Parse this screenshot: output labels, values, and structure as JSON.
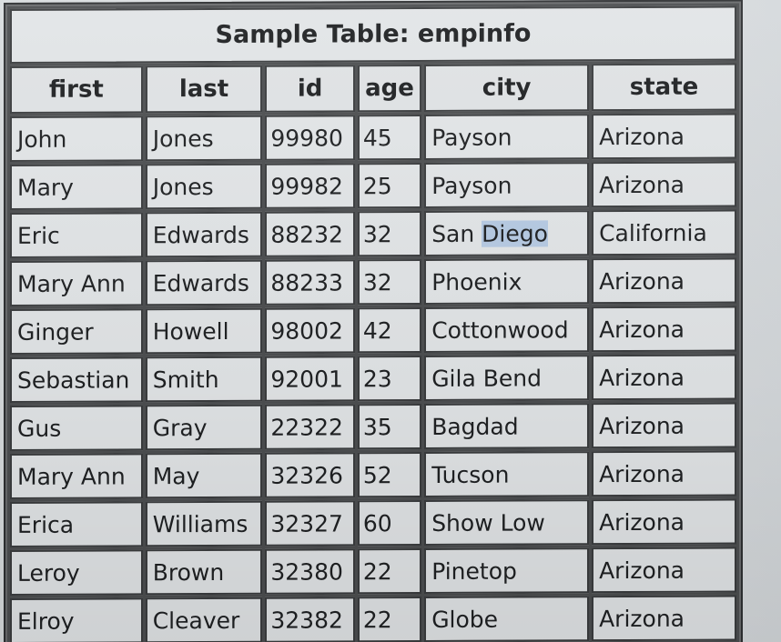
{
  "table": {
    "title": "Sample Table: empinfo",
    "columns": [
      "first",
      "last",
      "id",
      "age",
      "city",
      "state"
    ],
    "rows": [
      [
        "John",
        "Jones",
        "99980",
        "45",
        "Payson",
        "Arizona"
      ],
      [
        "Mary",
        "Jones",
        "99982",
        "25",
        "Payson",
        "Arizona"
      ],
      [
        "Eric",
        "Edwards",
        "88232",
        "32",
        "San Diego",
        "California"
      ],
      [
        "Mary Ann",
        "Edwards",
        "88233",
        "32",
        "Phoenix",
        "Arizona"
      ],
      [
        "Ginger",
        "Howell",
        "98002",
        "42",
        "Cottonwood",
        "Arizona"
      ],
      [
        "Sebastian",
        "Smith",
        "92001",
        "23",
        "Gila Bend",
        "Arizona"
      ],
      [
        "Gus",
        "Gray",
        "22322",
        "35",
        "Bagdad",
        "Arizona"
      ],
      [
        "Mary Ann",
        "May",
        "32326",
        "52",
        "Tucson",
        "Arizona"
      ],
      [
        "Erica",
        "Williams",
        "32327",
        "60",
        "Show Low",
        "Arizona"
      ],
      [
        "Leroy",
        "Brown",
        "32380",
        "22",
        "Pinetop",
        "Arizona"
      ],
      [
        "Elroy",
        "Cleaver",
        "32382",
        "22",
        "Globe",
        "Arizona"
      ]
    ],
    "selection": {
      "row": 2,
      "col": 4,
      "before": "San ",
      "text": "Diego"
    },
    "highlight_color": "#b7cbe4"
  }
}
